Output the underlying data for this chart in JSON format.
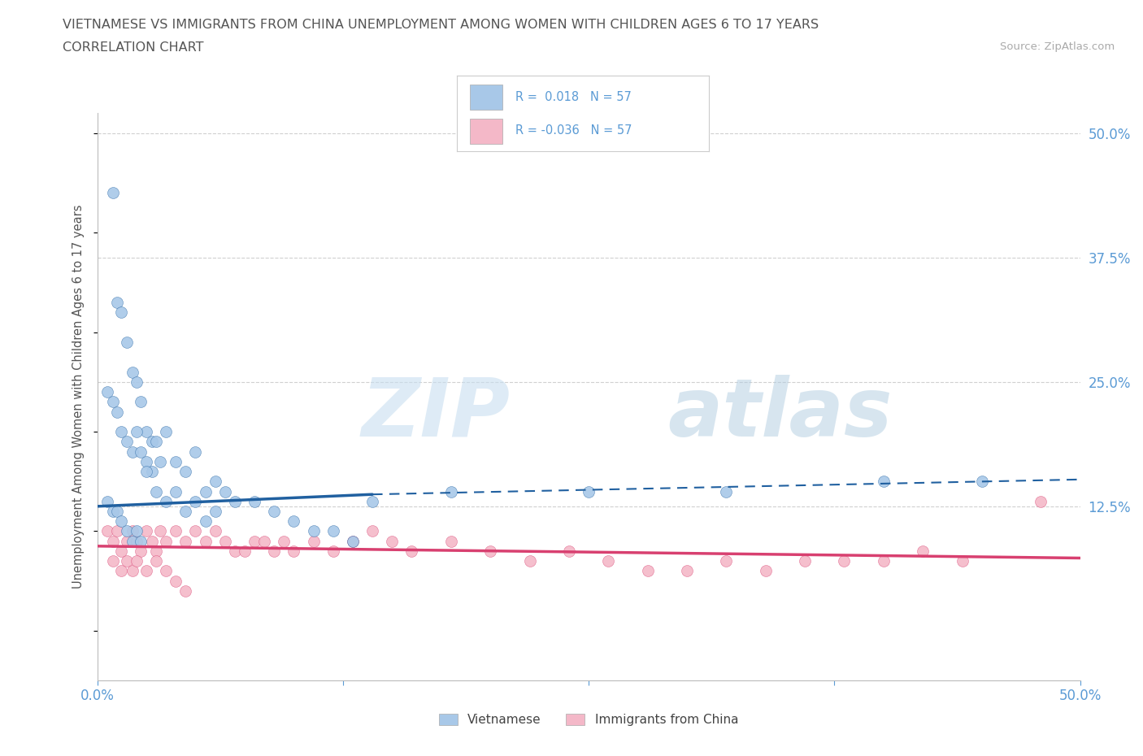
{
  "title_line1": "VIETNAMESE VS IMMIGRANTS FROM CHINA UNEMPLOYMENT AMONG WOMEN WITH CHILDREN AGES 6 TO 17 YEARS",
  "title_line2": "CORRELATION CHART",
  "source_text": "Source: ZipAtlas.com",
  "ylabel": "Unemployment Among Women with Children Ages 6 to 17 years",
  "xlim": [
    0.0,
    0.5
  ],
  "ylim": [
    -0.05,
    0.52
  ],
  "ytick_positions": [
    0.125,
    0.25,
    0.375,
    0.5
  ],
  "ytick_labels": [
    "12.5%",
    "25.0%",
    "37.5%",
    "50.0%"
  ],
  "grid_color": "#d0d0d0",
  "background_color": "#ffffff",
  "legend_label1": "Vietnamese",
  "legend_label2": "Immigrants from China",
  "blue_color": "#a8c8e8",
  "pink_color": "#f4b8c8",
  "blue_line_color": "#2060a0",
  "pink_line_color": "#d84070",
  "title_color": "#666666",
  "tick_color": "#5b9bd5",
  "vietnamese_x": [
    0.008,
    0.01,
    0.012,
    0.015,
    0.018,
    0.02,
    0.022,
    0.025,
    0.028,
    0.005,
    0.008,
    0.01,
    0.012,
    0.015,
    0.018,
    0.02,
    0.022,
    0.025,
    0.028,
    0.03,
    0.032,
    0.035,
    0.04,
    0.045,
    0.05,
    0.055,
    0.06,
    0.065,
    0.07,
    0.005,
    0.008,
    0.01,
    0.012,
    0.015,
    0.018,
    0.02,
    0.022,
    0.025,
    0.03,
    0.035,
    0.04,
    0.045,
    0.05,
    0.055,
    0.06,
    0.08,
    0.09,
    0.1,
    0.11,
    0.12,
    0.13,
    0.14,
    0.18,
    0.25,
    0.32,
    0.4,
    0.45
  ],
  "vietnamese_y": [
    0.44,
    0.33,
    0.32,
    0.29,
    0.26,
    0.25,
    0.23,
    0.2,
    0.19,
    0.24,
    0.23,
    0.22,
    0.2,
    0.19,
    0.18,
    0.2,
    0.18,
    0.17,
    0.16,
    0.19,
    0.17,
    0.2,
    0.17,
    0.16,
    0.18,
    0.14,
    0.15,
    0.14,
    0.13,
    0.13,
    0.12,
    0.12,
    0.11,
    0.1,
    0.09,
    0.1,
    0.09,
    0.16,
    0.14,
    0.13,
    0.14,
    0.12,
    0.13,
    0.11,
    0.12,
    0.13,
    0.12,
    0.11,
    0.1,
    0.1,
    0.09,
    0.13,
    0.14,
    0.14,
    0.14,
    0.15,
    0.15
  ],
  "china_x": [
    0.005,
    0.008,
    0.01,
    0.012,
    0.015,
    0.018,
    0.02,
    0.022,
    0.025,
    0.028,
    0.03,
    0.032,
    0.035,
    0.04,
    0.045,
    0.05,
    0.055,
    0.06,
    0.065,
    0.07,
    0.075,
    0.08,
    0.085,
    0.09,
    0.095,
    0.1,
    0.11,
    0.12,
    0.13,
    0.14,
    0.15,
    0.16,
    0.18,
    0.2,
    0.22,
    0.24,
    0.26,
    0.28,
    0.3,
    0.32,
    0.34,
    0.36,
    0.38,
    0.4,
    0.42,
    0.44,
    0.008,
    0.012,
    0.015,
    0.018,
    0.02,
    0.025,
    0.03,
    0.035,
    0.04,
    0.045,
    0.48
  ],
  "china_y": [
    0.1,
    0.09,
    0.1,
    0.08,
    0.09,
    0.1,
    0.09,
    0.08,
    0.1,
    0.09,
    0.08,
    0.1,
    0.09,
    0.1,
    0.09,
    0.1,
    0.09,
    0.1,
    0.09,
    0.08,
    0.08,
    0.09,
    0.09,
    0.08,
    0.09,
    0.08,
    0.09,
    0.08,
    0.09,
    0.1,
    0.09,
    0.08,
    0.09,
    0.08,
    0.07,
    0.08,
    0.07,
    0.06,
    0.06,
    0.07,
    0.06,
    0.07,
    0.07,
    0.07,
    0.08,
    0.07,
    0.07,
    0.06,
    0.07,
    0.06,
    0.07,
    0.06,
    0.07,
    0.06,
    0.05,
    0.04,
    0.13
  ],
  "viet_line_x0": 0.0,
  "viet_line_y0": 0.125,
  "viet_line_x1": 0.14,
  "viet_line_y1": 0.137,
  "viet_line_x2": 0.5,
  "viet_line_y2": 0.152,
  "china_line_x0": 0.0,
  "china_line_y0": 0.085,
  "china_line_x1": 0.5,
  "china_line_y1": 0.073
}
